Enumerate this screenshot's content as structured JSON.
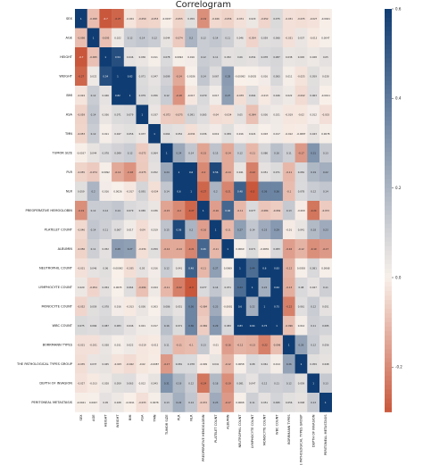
{
  "chart_data": {
    "type": "heatmap",
    "title": "Correlogram",
    "labels": [
      "SEX",
      "AGE",
      "HEIGHT",
      "WEIGHT",
      "BMI",
      "ASA",
      "TMN",
      "TUMOR SIZE",
      "PLR",
      "NLR",
      "PREOPERATIVE HEMOGLOBIN",
      "PLATELET COUNT",
      "ALBUMIN",
      "NEUTROPHIL COUNT",
      "LYMPHOCYTE COUNT",
      "MONOCYTE COUNT",
      "WBC COUNT",
      "BORRMANN TYPES",
      "THE PATHOLOGICAL TYPES GROUP",
      "DEPTH OF INVASION",
      "PERITONEAL METASTASIS"
    ],
    "matrix": [
      [
        1,
        -0.098,
        -0.7,
        -0.27,
        -0.024,
        -0.059,
        -0.053,
        -0.0037,
        -0.055,
        0.059,
        -0.19,
        -0.046,
        -0.056,
        -0.031,
        0.029,
        -0.052,
        0.075,
        -0.031,
        -0.035,
        -0.027,
        -0.0041
      ],
      [
        -0.098,
        1,
        -0.095,
        0.022,
        0.12,
        0.14,
        0.12,
        0.044,
        -0.074,
        0.2,
        0.12,
        0.14,
        0.11,
        0.046,
        -0.054,
        0.059,
        0.066,
        -0.031,
        0.037,
        -0.013,
        0.0047
      ],
      [
        -0.7,
        -0.095,
        1,
        0.54,
        0.046,
        0.036,
        0.011,
        0.078,
        0.0092,
        0.016,
        0.12,
        0.11,
        0.052,
        0.06,
        0.054,
        0.078,
        0.087,
        0.038,
        0.045,
        0.028,
        0.05
      ],
      [
        -0.27,
        0.022,
        0.54,
        1,
        0.82,
        0.071,
        0.047,
        0.099,
        -0.14,
        0.0026,
        0.14,
        0.067,
        0.28,
        -0.00092,
        0.0035,
        0.016,
        0.083,
        0.011,
        -0.025,
        0.059,
        0.028
      ],
      [
        -0.024,
        0.12,
        0.046,
        0.82,
        1,
        0.079,
        0.056,
        0.12,
        -0.18,
        -0.017,
        0.079,
        0.017,
        0.27,
        -0.035,
        0.064,
        -0.013,
        0.046,
        0.022,
        -0.042,
        0.063,
        -0.0011
      ],
      [
        -0.059,
        0.14,
        0.036,
        0.071,
        0.079,
        1,
        0.037,
        -0.072,
        -0.075,
        0.091,
        0.065,
        -0.04,
        -0.034,
        0.05,
        -0.094,
        0.036,
        0.021,
        -0.019,
        -0.02,
        0.012,
        -0.033
      ],
      [
        -0.053,
        0.12,
        0.011,
        0.047,
        0.056,
        0.037,
        1,
        0.064,
        0.052,
        -0.034,
        0.036,
        0.019,
        0.059,
        0.016,
        0.024,
        0.003,
        0.017,
        -0.012,
        -0.0087,
        0.043,
        0.0078
      ],
      [
        -0.0037,
        0.044,
        0.078,
        0.099,
        0.12,
        -0.072,
        0.064,
        1,
        0.24,
        0.14,
        -0.15,
        0.15,
        -0.14,
        0.12,
        -0.11,
        0.086,
        0.16,
        0.11,
        -0.17,
        0.31,
        0.13
      ],
      [
        -0.055,
        -0.074,
        0.0092,
        -0.14,
        -0.18,
        -0.075,
        0.052,
        0.24,
        1,
        0.6,
        -0.2,
        0.56,
        -0.14,
        0.041,
        -0.22,
        0.051,
        0.071,
        -0.11,
        0.081,
        0.19,
        0.22
      ],
      [
        0.059,
        0.2,
        0.016,
        0.0026,
        -0.017,
        0.091,
        -0.034,
        0.14,
        0.6,
        1,
        -0.27,
        0.2,
        -0.21,
        0.48,
        -0.3,
        0.36,
        0.36,
        -0.1,
        0.078,
        0.12,
        0.14
      ],
      [
        -0.19,
        0.12,
        0.12,
        0.14,
        0.079,
        0.065,
        0.036,
        -0.15,
        -0.2,
        -0.27,
        1,
        -0.16,
        0.46,
        -0.11,
        0.077,
        -0.084,
        -0.069,
        0.13,
        -0.009,
        -0.24,
        -0.072
      ],
      [
        -0.046,
        0.14,
        0.11,
        0.067,
        0.017,
        -0.04,
        0.019,
        0.15,
        0.56,
        0.2,
        -0.16,
        1,
        -0.11,
        0.27,
        0.14,
        0.23,
        0.29,
        -0.01,
        0.041,
        0.18,
        0.23
      ],
      [
        -0.056,
        0.11,
        0.052,
        0.28,
        0.27,
        -0.034,
        0.059,
        -0.14,
        -0.14,
        -0.21,
        0.46,
        -0.11,
        1,
        0.0069,
        0.071,
        -0.0081,
        0.083,
        -0.16,
        -0.12,
        -0.19,
        -0.17
      ],
      [
        -0.031,
        0.046,
        0.06,
        -0.00092,
        -0.035,
        0.05,
        0.016,
        0.12,
        0.041,
        0.48,
        -0.11,
        0.27,
        0.0069,
        1,
        0.44,
        0.6,
        0.83,
        -0.12,
        0.0058,
        0.081,
        0.0068
      ],
      [
        0.029,
        -0.054,
        0.054,
        0.0035,
        0.064,
        -0.094,
        0.024,
        -0.11,
        -0.22,
        -0.3,
        0.077,
        0.14,
        0.071,
        0.44,
        1,
        0.22,
        0.64,
        -0.13,
        0.08,
        0.047,
        0.11
      ],
      [
        -0.052,
        0.059,
        0.078,
        0.016,
        -0.013,
        0.036,
        0.003,
        0.086,
        0.051,
        0.36,
        -0.084,
        0.23,
        -0.0081,
        0.6,
        0.22,
        1,
        0.75,
        -0.22,
        0.061,
        0.12,
        0.051
      ],
      [
        0.075,
        0.066,
        0.087,
        0.083,
        0.046,
        0.021,
        0.017,
        0.16,
        0.071,
        0.36,
        -0.069,
        0.29,
        0.083,
        0.83,
        0.64,
        0.75,
        1,
        -0.096,
        0.014,
        0.11,
        0.095
      ],
      [
        -0.031,
        -0.031,
        0.038,
        0.011,
        0.022,
        -0.019,
        -0.012,
        0.11,
        -0.11,
        -0.1,
        0.13,
        -0.01,
        -0.16,
        -0.12,
        -0.13,
        -0.22,
        -0.096,
        1,
        0.26,
        0.12,
        0.056
      ],
      [
        -0.035,
        0.037,
        0.045,
        -0.025,
        -0.042,
        -0.02,
        -0.0087,
        -0.17,
        0.081,
        0.078,
        -0.009,
        0.041,
        -0.12,
        0.0058,
        0.08,
        0.061,
        0.014,
        0.26,
        1,
        0.059,
        0.048
      ],
      [
        -0.027,
        -0.013,
        0.028,
        0.059,
        0.063,
        0.012,
        0.043,
        0.31,
        0.19,
        0.12,
        -0.24,
        0.18,
        -0.19,
        0.081,
        0.047,
        0.12,
        0.11,
        0.12,
        0.059,
        1,
        0.13
      ],
      [
        -0.0041,
        0.0047,
        0.05,
        0.028,
        -0.0011,
        -0.033,
        0.0078,
        0.13,
        0.22,
        0.14,
        -0.072,
        0.23,
        -0.17,
        0.0068,
        0.11,
        0.051,
        0.095,
        0.056,
        0.048,
        0.13,
        1
      ]
    ],
    "color_range": [
      -0.3,
      0.6
    ],
    "colorbar_ticks": [
      -0.2,
      0.0,
      0.2,
      0.4,
      0.6
    ],
    "colors": {
      "negative": "#c9573b",
      "neutral": "#f8f0ea",
      "positive": "#0f3d73"
    }
  }
}
